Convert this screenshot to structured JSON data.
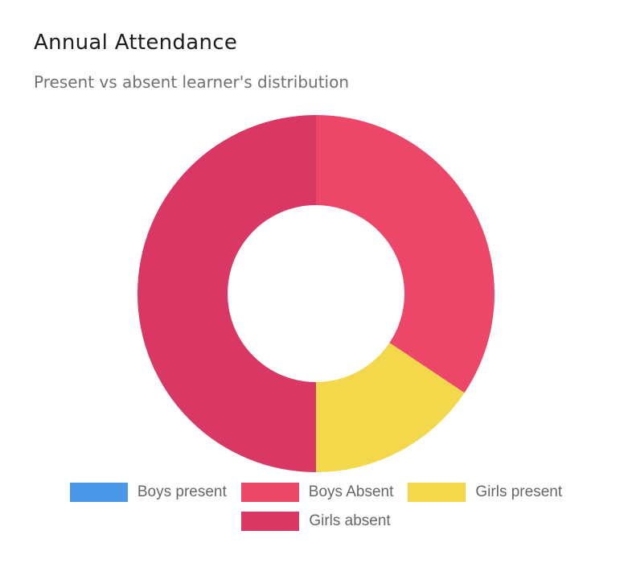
{
  "chart_data": {
    "type": "doughnut",
    "title": "Annual Attendance",
    "subtitle": "Present vs absent learner's distribution",
    "categories": [
      "Boys present",
      "Boys Absent",
      "Girls present",
      "Girls absent"
    ],
    "values": [
      0,
      11,
      5,
      16
    ],
    "colors": [
      "#4A96E8",
      "#EC4768",
      "#F2D84A",
      "#D93764"
    ],
    "legend_position": "bottom"
  }
}
